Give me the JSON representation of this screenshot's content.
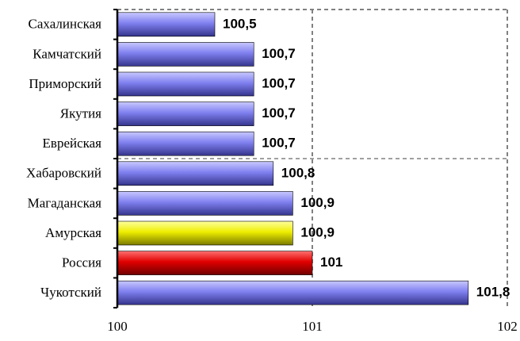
{
  "chart_data": {
    "type": "bar",
    "orientation": "horizontal",
    "categories": [
      "Сахалинская",
      "Камчатский",
      "Приморский",
      "Якутия",
      "Еврейская",
      "Хабаровский",
      "Магаданская",
      "Амурская",
      "Россия",
      "Чукотский"
    ],
    "values": [
      100.5,
      100.7,
      100.7,
      100.7,
      100.7,
      100.8,
      100.9,
      100.9,
      101,
      101.8
    ],
    "value_labels": [
      "100,5",
      "100,7",
      "100,7",
      "100,7",
      "100,7",
      "100,8",
      "100,9",
      "100,9",
      "101",
      "101,8"
    ],
    "bar_colors": [
      "#7b7bee",
      "#7b7bee",
      "#7b7bee",
      "#7b7bee",
      "#7b7bee",
      "#7b7bee",
      "#7b7bee",
      "#e8e800",
      "#dd0000",
      "#7b7bee"
    ],
    "xlim": [
      100,
      102
    ],
    "x_ticks": [
      100,
      101,
      102
    ],
    "x_tick_labels": [
      "100",
      "101",
      "102"
    ],
    "grid": "dashed vertical gridlines",
    "title": "",
    "xlabel": "",
    "ylabel": ""
  }
}
